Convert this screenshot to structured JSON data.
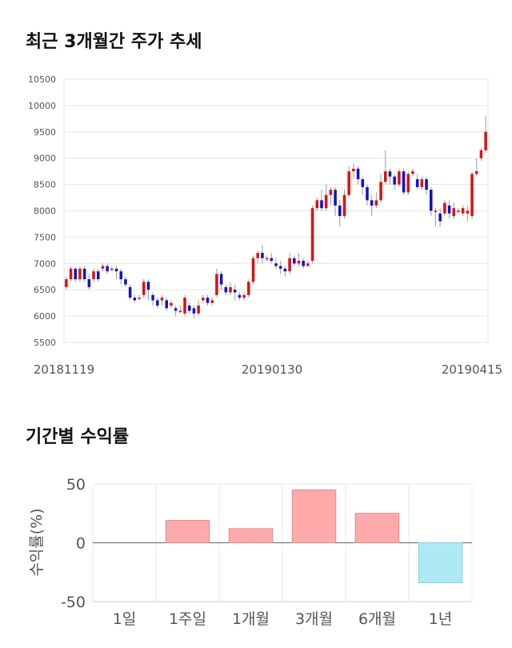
{
  "titles": {
    "price_trend": "최근 3개월간 주가 추세",
    "returns": "기간별 수익률"
  },
  "chart_data": [
    {
      "type": "candlestick",
      "title": "최근 3개월간 주가 추세",
      "ylim": [
        5500,
        10500
      ],
      "y_ticks": [
        "10500",
        "10000",
        "9500",
        "9000",
        "8500",
        "8000",
        "7500",
        "7000",
        "6500",
        "6000",
        "5500"
      ],
      "x_tick_labels": [
        "20181119",
        "20190130",
        "20190415"
      ],
      "grid": true,
      "colors": {
        "up": "#dd1111",
        "down": "#1111cc"
      },
      "candles": [
        [
          6550,
          6700,
          6500,
          6750
        ],
        [
          6700,
          6900,
          6650,
          6950
        ],
        [
          6900,
          6700,
          6650,
          6920
        ],
        [
          6700,
          6900,
          6650,
          6950
        ],
        [
          6900,
          6700,
          6650,
          6950
        ],
        [
          6700,
          6550,
          6500,
          6800
        ],
        [
          6700,
          6850,
          6650,
          6900
        ],
        [
          6850,
          6700,
          6650,
          6900
        ],
        [
          6900,
          6950,
          6850,
          7000
        ],
        [
          6950,
          6850,
          6800,
          7000
        ],
        [
          6900,
          6900,
          6850,
          6950
        ],
        [
          6900,
          6850,
          6700,
          6950
        ],
        [
          6850,
          6700,
          6600,
          6900
        ],
        [
          6700,
          6600,
          6550,
          6750
        ],
        [
          6550,
          6350,
          6300,
          6600
        ],
        [
          6350,
          6300,
          6250,
          6400
        ],
        [
          6350,
          6350,
          6300,
          6400
        ],
        [
          6400,
          6650,
          6350,
          6700
        ],
        [
          6650,
          6500,
          6300,
          6700
        ],
        [
          6400,
          6300,
          6200,
          6450
        ],
        [
          6300,
          6200,
          6150,
          6350
        ],
        [
          6300,
          6350,
          6200,
          6400
        ],
        [
          6300,
          6150,
          6100,
          6350
        ],
        [
          6200,
          6250,
          6150,
          6300
        ],
        [
          6150,
          6100,
          6000,
          6200
        ],
        [
          6100,
          6100,
          6050,
          6200
        ],
        [
          6050,
          6350,
          6000,
          6400
        ],
        [
          6200,
          6100,
          6050,
          6250
        ],
        [
          6150,
          6050,
          5950,
          6200
        ],
        [
          6050,
          6200,
          6000,
          6300
        ],
        [
          6300,
          6350,
          6250,
          6400
        ],
        [
          6350,
          6250,
          6200,
          6400
        ],
        [
          6250,
          6300,
          6200,
          6350
        ],
        [
          6400,
          6800,
          6350,
          6900
        ],
        [
          6800,
          6600,
          6500,
          6850
        ],
        [
          6550,
          6450,
          6400,
          6600
        ],
        [
          6450,
          6550,
          6400,
          6650
        ],
        [
          6500,
          6450,
          6300,
          6600
        ],
        [
          6400,
          6350,
          6300,
          6450
        ],
        [
          6350,
          6400,
          6300,
          6450
        ],
        [
          6400,
          6650,
          6350,
          6700
        ],
        [
          6650,
          7100,
          6600,
          7150
        ],
        [
          7100,
          7200,
          7000,
          7250
        ],
        [
          7200,
          7100,
          7000,
          7350
        ],
        [
          7100,
          7100,
          7050,
          7150
        ],
        [
          7100,
          7050,
          7000,
          7200
        ],
        [
          7000,
          6950,
          6900,
          7100
        ],
        [
          6950,
          6900,
          6800,
          7050
        ],
        [
          6900,
          6850,
          6750,
          6950
        ],
        [
          6850,
          7100,
          6800,
          7200
        ],
        [
          7100,
          7000,
          6950,
          7150
        ],
        [
          7000,
          7050,
          6950,
          7200
        ],
        [
          7050,
          6950,
          6900,
          7100
        ],
        [
          6950,
          7000,
          6950,
          7050
        ],
        [
          7050,
          8050,
          7000,
          8100
        ],
        [
          8050,
          8200,
          8000,
          8250
        ],
        [
          8200,
          8050,
          8000,
          8400
        ],
        [
          8050,
          8300,
          8000,
          8500
        ],
        [
          8300,
          8400,
          8100,
          8450
        ],
        [
          8400,
          8100,
          7900,
          8450
        ],
        [
          8100,
          7900,
          7700,
          8200
        ],
        [
          7900,
          8300,
          7850,
          8400
        ],
        [
          8300,
          8750,
          8250,
          8850
        ],
        [
          8750,
          8800,
          8600,
          8900
        ],
        [
          8800,
          8600,
          8500,
          8850
        ],
        [
          8600,
          8450,
          8300,
          8650
        ],
        [
          8450,
          8200,
          8100,
          8500
        ],
        [
          8200,
          8100,
          7900,
          8300
        ],
        [
          8100,
          8200,
          8050,
          8350
        ],
        [
          8200,
          8550,
          8150,
          8700
        ],
        [
          8550,
          8750,
          8500,
          9150
        ],
        [
          8750,
          8650,
          8500,
          8800
        ],
        [
          8650,
          8500,
          8400,
          8700
        ],
        [
          8500,
          8750,
          8450,
          8800
        ],
        [
          8750,
          8350,
          8300,
          8800
        ],
        [
          8350,
          8700,
          8300,
          8750
        ],
        [
          8700,
          8750,
          8650,
          8800
        ],
        [
          8600,
          8450,
          8400,
          8700
        ],
        [
          8450,
          8600,
          8400,
          8650
        ],
        [
          8600,
          8400,
          8300,
          8650
        ],
        [
          8400,
          8000,
          7900,
          8450
        ],
        [
          8000,
          8000,
          7700,
          8050
        ],
        [
          7950,
          7800,
          7700,
          8050
        ],
        [
          7950,
          8150,
          7900,
          8200
        ],
        [
          8100,
          7950,
          7850,
          8200
        ],
        [
          7900,
          8050,
          7850,
          8150
        ],
        [
          8000,
          8000,
          7950,
          8050
        ],
        [
          7950,
          8050,
          7900,
          8100
        ],
        [
          7950,
          8000,
          7800,
          8100
        ],
        [
          7900,
          8700,
          7850,
          8750
        ],
        [
          8700,
          8750,
          8650,
          9000
        ],
        [
          9000,
          9150,
          8950,
          9200
        ],
        [
          9150,
          9500,
          9100,
          9800
        ]
      ]
    },
    {
      "type": "bar",
      "title": "기간별 수익률",
      "categories": [
        "1일",
        "1주일",
        "1개월",
        "3개월",
        "6개월",
        "1년"
      ],
      "values": [
        0,
        19,
        12,
        45,
        25,
        -34
      ],
      "ylabel": "수익률(%)",
      "ylim": [
        -50,
        50
      ],
      "y_ticks": [
        "50",
        "0",
        "-50"
      ],
      "grid": true,
      "colors": {
        "positive": "#ffaaaa",
        "negative": "#aee8f2"
      }
    }
  ]
}
